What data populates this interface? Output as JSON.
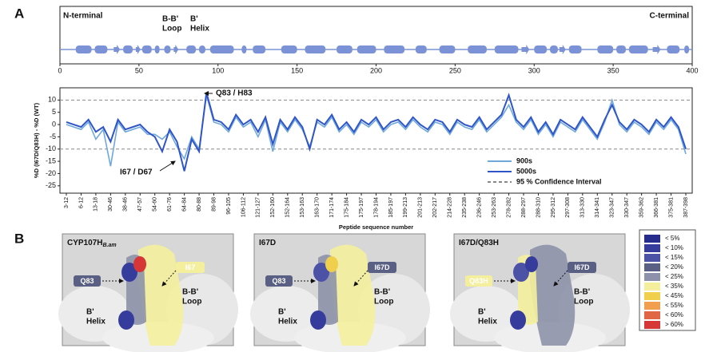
{
  "panel_labels": [
    "A",
    "B"
  ],
  "chart_data": [
    {
      "type": "sequence",
      "labels": [
        "N-terminal",
        "C-terminal"
      ],
      "annotations": [
        {
          "lines": [
            "B-B'",
            "Loop"
          ]
        },
        {
          "lines": [
            "B'",
            "Helix"
          ]
        }
      ],
      "color": "#7b93d6",
      "xlim": [
        0,
        400
      ],
      "xticks": [
        0,
        50,
        100,
        150,
        200,
        250,
        300,
        350,
        400
      ],
      "elements": [
        {
          "kind": "helix",
          "start": 10,
          "end": 20
        },
        {
          "kind": "helix",
          "start": 22,
          "end": 30
        },
        {
          "kind": "strand",
          "start": 34,
          "end": 38
        },
        {
          "kind": "helix",
          "start": 40,
          "end": 46
        },
        {
          "kind": "strand",
          "start": 48,
          "end": 51
        },
        {
          "kind": "helix",
          "start": 52,
          "end": 58
        },
        {
          "kind": "helix",
          "start": 60,
          "end": 63
        },
        {
          "kind": "helix",
          "start": 66,
          "end": 70
        },
        {
          "kind": "strand",
          "start": 72,
          "end": 75
        },
        {
          "kind": "helix",
          "start": 80,
          "end": 86
        },
        {
          "kind": "helix",
          "start": 88,
          "end": 92
        },
        {
          "kind": "helix",
          "start": 95,
          "end": 110
        },
        {
          "kind": "helix",
          "start": 115,
          "end": 118
        },
        {
          "kind": "helix",
          "start": 122,
          "end": 130
        },
        {
          "kind": "helix",
          "start": 140,
          "end": 150
        },
        {
          "kind": "helix",
          "start": 155,
          "end": 168
        },
        {
          "kind": "helix",
          "start": 175,
          "end": 185
        },
        {
          "kind": "helix",
          "start": 188,
          "end": 200
        },
        {
          "kind": "helix",
          "start": 205,
          "end": 218
        },
        {
          "kind": "helix",
          "start": 225,
          "end": 232
        },
        {
          "kind": "helix",
          "start": 240,
          "end": 250
        },
        {
          "kind": "helix",
          "start": 258,
          "end": 270
        },
        {
          "kind": "helix",
          "start": 275,
          "end": 290
        },
        {
          "kind": "strand",
          "start": 292,
          "end": 297
        },
        {
          "kind": "helix",
          "start": 300,
          "end": 308
        },
        {
          "kind": "helix",
          "start": 310,
          "end": 315
        },
        {
          "kind": "strand",
          "start": 316,
          "end": 320
        },
        {
          "kind": "helix",
          "start": 322,
          "end": 330
        },
        {
          "kind": "helix",
          "start": 340,
          "end": 350
        },
        {
          "kind": "helix",
          "start": 352,
          "end": 358
        },
        {
          "kind": "helix",
          "start": 360,
          "end": 372
        },
        {
          "kind": "strand",
          "start": 375,
          "end": 380
        },
        {
          "kind": "helix",
          "start": 384,
          "end": 392
        },
        {
          "kind": "helix",
          "start": 395,
          "end": 398
        }
      ]
    },
    {
      "type": "line",
      "y_label": "%D (I67D/Q83H) - %D (WT)",
      "x_label": "Peptide sequence number",
      "annotations": [
        "Q83 / H83",
        "I67 / D67"
      ],
      "categories": [
        "3-12",
        null,
        "6-12",
        null,
        "13-18",
        null,
        "30-46",
        null,
        "38-46",
        null,
        "47-57",
        null,
        "54-60",
        null,
        "61-76",
        null,
        "64-84",
        null,
        "80-88",
        null,
        "89-98",
        null,
        "96-105",
        null,
        "106-112",
        null,
        "121-127",
        null,
        "152-160",
        null,
        "152-164",
        null,
        "153-163",
        null,
        "163-170",
        null,
        "171-174",
        null,
        "175-184",
        null,
        "175-197",
        null,
        "178-194",
        null,
        "185-197",
        null,
        "199-213",
        null,
        "201-213",
        null,
        "202-217",
        null,
        "214-228",
        null,
        "235-238",
        null,
        "236-246",
        null,
        "253-263",
        null,
        "278-282",
        null,
        "288-297",
        null,
        "288-310",
        null,
        "295-312",
        null,
        "297-308",
        null,
        "313-330",
        null,
        "314-341",
        null,
        "323-347",
        null,
        "330-347",
        null,
        "359-362",
        null,
        "366-381",
        null,
        "375-381",
        null,
        "387-398"
      ],
      "series": [
        {
          "name": "900s",
          "color": "#6fa8dc",
          "values": [
            0,
            -1,
            -2,
            1,
            -6,
            -2,
            -17,
            1,
            -3,
            -2,
            -1,
            -4,
            -4,
            -6,
            -3,
            -9,
            -14,
            -5,
            -10,
            12,
            1,
            0,
            -3,
            3,
            -1,
            1,
            -5,
            2,
            -11,
            1,
            -3,
            2,
            -2,
            -9,
            1,
            -1,
            3,
            -3,
            0,
            -4,
            1,
            -1,
            2,
            -3,
            0,
            1,
            -2,
            2,
            -1,
            -3,
            1,
            0,
            -4,
            1,
            -1,
            -2,
            2,
            -3,
            0,
            3,
            8,
            1,
            -2,
            2,
            -4,
            0,
            -5,
            1,
            -1,
            -3,
            2,
            -2,
            -6,
            1,
            10,
            0,
            -3,
            1,
            -1,
            -4,
            1,
            -2,
            2,
            -2,
            -12
          ]
        },
        {
          "name": "5000s",
          "color": "#2f55c8",
          "values": [
            1,
            0,
            -1,
            2,
            -3,
            -1,
            -7,
            2,
            -2,
            -1,
            0,
            -3,
            -5,
            -11,
            -2,
            -7,
            -19,
            -6,
            -11,
            13,
            2,
            1,
            -2,
            4,
            0,
            2,
            -3,
            3,
            -8,
            2,
            -2,
            3,
            -1,
            -10,
            2,
            0,
            4,
            -2,
            1,
            -3,
            2,
            0,
            3,
            -2,
            1,
            2,
            -1,
            3,
            0,
            -2,
            2,
            1,
            -3,
            2,
            0,
            -1,
            3,
            -2,
            1,
            4,
            12,
            2,
            -1,
            3,
            -3,
            1,
            -4,
            2,
            0,
            -2,
            3,
            -1,
            -5,
            2,
            8,
            1,
            -2,
            2,
            0,
            -3,
            2,
            -1,
            3,
            -1,
            -10
          ]
        }
      ],
      "confidence_interval": {
        "name": "95 % Confidence Interval",
        "color": "#888888",
        "values": [
          -10,
          10
        ]
      },
      "ylim": [
        -28,
        15
      ],
      "yticks": [
        -25,
        -20,
        -15,
        -10,
        -5,
        0,
        5,
        10
      ],
      "legend": "lower right"
    }
  ],
  "panel_b": {
    "panels": [
      {
        "title": "CYP107H",
        "title_sub": "B.am",
        "tag_left": "Q83",
        "tag_right": "I67",
        "loop": [
          "B-B'",
          "Loop"
        ],
        "helix": [
          "B'",
          "Helix"
        ]
      },
      {
        "title": "I67D",
        "tag_left": "Q83",
        "tag_right": "I67D",
        "loop": [
          "B-B'",
          "Loop"
        ],
        "helix": [
          "B'",
          "Helix"
        ]
      },
      {
        "title": "I67D/Q83H",
        "tag_left": "Q83H",
        "tag_right": "I67D",
        "loop": [
          "B-B'",
          "Loop"
        ],
        "helix": [
          "B'",
          "Helix"
        ]
      }
    ],
    "scale": [
      {
        "label": "< 5%",
        "color": "#262c8c"
      },
      {
        "label": "< 10%",
        "color": "#363c9c"
      },
      {
        "label": "< 15%",
        "color": "#4c52a6"
      },
      {
        "label": "< 20%",
        "color": "#5a5f84"
      },
      {
        "label": "< 25%",
        "color": "#8d92aa"
      },
      {
        "label": "< 35%",
        "color": "#f4ef9c"
      },
      {
        "label": "< 45%",
        "color": "#efcf4c"
      },
      {
        "label": "< 55%",
        "color": "#ef9f4e"
      },
      {
        "label": "< 60%",
        "color": "#e06646"
      },
      {
        "label": "> 60%",
        "color": "#d63636"
      }
    ]
  }
}
